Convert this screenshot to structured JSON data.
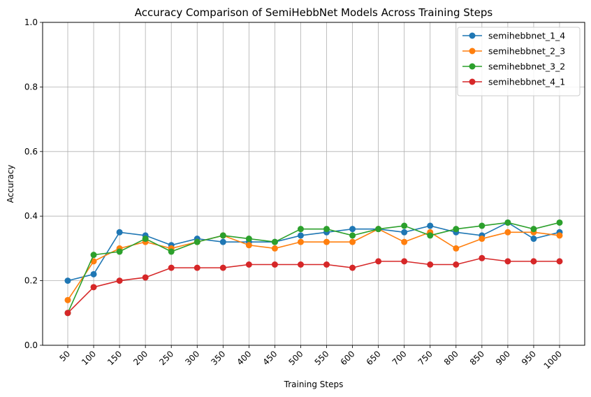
{
  "chart_data": {
    "type": "line",
    "title": "Accuracy Comparison of SemiHebbNet Models Across Training Steps",
    "xlabel": "Training Steps",
    "ylabel": "Accuracy",
    "ylim": [
      0,
      1
    ],
    "yticks": [
      "0.0",
      "0.2",
      "0.4",
      "0.6",
      "0.8",
      "1.0"
    ],
    "grid": true,
    "legend_position": "top-right",
    "categories": [
      "50",
      "100",
      "150",
      "200",
      "250",
      "300",
      "350",
      "400",
      "450",
      "500",
      "550",
      "600",
      "650",
      "700",
      "750",
      "800",
      "850",
      "900",
      "950",
      "1000"
    ],
    "series": [
      {
        "name": "semihebbnet_1_4",
        "color": "#1f77b4",
        "values": [
          0.2,
          0.22,
          0.35,
          0.34,
          0.31,
          0.33,
          0.32,
          0.32,
          0.32,
          0.34,
          0.35,
          0.36,
          0.36,
          0.35,
          0.37,
          0.35,
          0.34,
          0.38,
          0.33,
          0.35
        ]
      },
      {
        "name": "semihebbnet_2_3",
        "color": "#ff7f0e",
        "values": [
          0.14,
          0.26,
          0.3,
          0.32,
          0.3,
          0.32,
          0.34,
          0.31,
          0.3,
          0.32,
          0.32,
          0.32,
          0.36,
          0.32,
          0.35,
          0.3,
          0.33,
          0.35,
          0.35,
          0.34
        ]
      },
      {
        "name": "semihebbnet_3_2",
        "color": "#2ca02c",
        "values": [
          0.1,
          0.28,
          0.29,
          0.33,
          0.29,
          0.32,
          0.34,
          0.33,
          0.32,
          0.36,
          0.36,
          0.34,
          0.36,
          0.37,
          0.34,
          0.36,
          0.37,
          0.38,
          0.36,
          0.38
        ]
      },
      {
        "name": "semihebbnet_4_1",
        "color": "#d62728",
        "values": [
          0.1,
          0.18,
          0.2,
          0.21,
          0.24,
          0.24,
          0.24,
          0.25,
          0.25,
          0.25,
          0.25,
          0.24,
          0.26,
          0.26,
          0.25,
          0.25,
          0.27,
          0.26,
          0.26,
          0.26
        ]
      }
    ]
  }
}
